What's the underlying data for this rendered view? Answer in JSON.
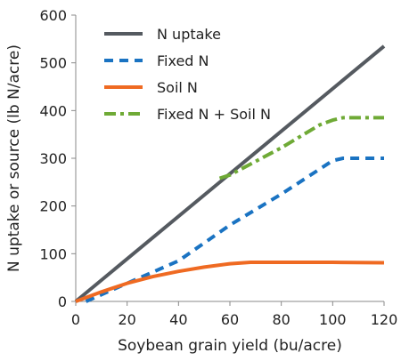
{
  "chart_data": {
    "type": "line",
    "title": "",
    "xlabel": "Soybean grain yield (bu/acre)",
    "ylabel": "N  uptake or source (lb N/acre)",
    "xlim": [
      0,
      120
    ],
    "ylim": [
      0,
      600
    ],
    "xticks": [
      0,
      20,
      40,
      60,
      80,
      100,
      120
    ],
    "yticks": [
      0,
      100,
      200,
      300,
      400,
      500,
      600
    ],
    "grid": false,
    "legend_position": "top-left",
    "series": [
      {
        "name": "N uptake",
        "color": "#555a60",
        "style": "solid",
        "points": [
          [
            0,
            0
          ],
          [
            120,
            535
          ]
        ]
      },
      {
        "name": "Fixed N",
        "color": "#1a73c2",
        "style": "dashed",
        "points": [
          [
            4,
            0
          ],
          [
            20,
            38
          ],
          [
            40,
            85
          ],
          [
            60,
            160
          ],
          [
            80,
            225
          ],
          [
            100,
            295
          ],
          [
            104,
            300
          ],
          [
            120,
            300
          ]
        ]
      },
      {
        "name": "Soil N",
        "color": "#ef6a22",
        "style": "solid",
        "points": [
          [
            0,
            0
          ],
          [
            10,
            20
          ],
          [
            20,
            38
          ],
          [
            30,
            52
          ],
          [
            40,
            63
          ],
          [
            50,
            72
          ],
          [
            60,
            79
          ],
          [
            68,
            82
          ],
          [
            80,
            82
          ],
          [
            100,
            82
          ],
          [
            120,
            81
          ]
        ]
      },
      {
        "name": "Fixed N + Soil N",
        "color": "#6faa36",
        "style": "dashdot",
        "points": [
          [
            56,
            258
          ],
          [
            60,
            265
          ],
          [
            80,
            322
          ],
          [
            95,
            370
          ],
          [
            100,
            380
          ],
          [
            104,
            385
          ],
          [
            120,
            385
          ]
        ]
      }
    ]
  }
}
